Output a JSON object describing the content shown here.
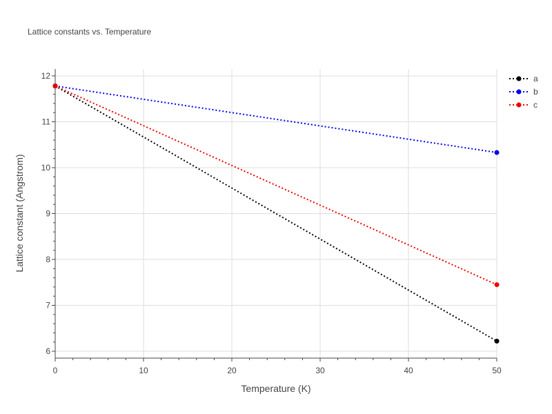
{
  "chart_data": {
    "type": "line",
    "title": "Lattice constants vs. Temperature",
    "xlabel": "Temperature (K)",
    "ylabel": "Lattice constant (Angstrom)",
    "xlim": [
      0,
      50
    ],
    "ylim": [
      5.85,
      12.15
    ],
    "xticks": [
      0,
      10,
      20,
      30,
      40,
      50
    ],
    "yticks": [
      6,
      7,
      8,
      9,
      10,
      11,
      12
    ],
    "grid": true,
    "legend_position": "top-right",
    "series": [
      {
        "name": "a",
        "color": "#000000",
        "line_style": "dotted",
        "x": [
          0,
          50
        ],
        "y": [
          11.78,
          6.22
        ]
      },
      {
        "name": "b",
        "color": "#0000ee",
        "line_style": "dotted",
        "x": [
          0,
          50
        ],
        "y": [
          11.78,
          10.33
        ]
      },
      {
        "name": "c",
        "color": "#ee0000",
        "line_style": "dotted",
        "x": [
          0,
          50
        ],
        "y": [
          11.78,
          7.45
        ]
      }
    ]
  }
}
